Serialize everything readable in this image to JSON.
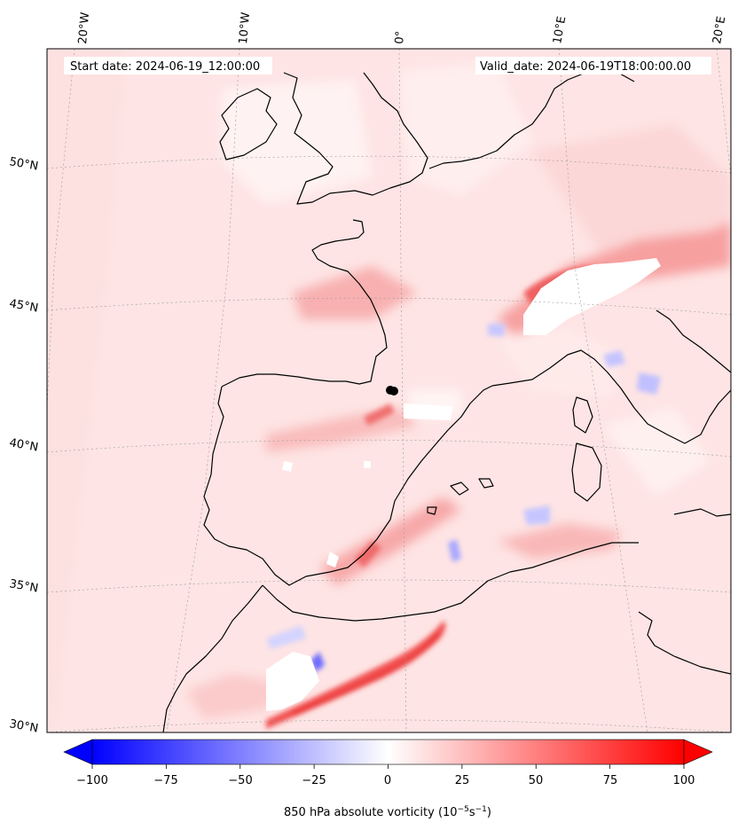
{
  "map": {
    "start_label": "Start date: 2024-06-19_12:00:00",
    "valid_label": "Valid_date: 2024-06-19T18:00:00.00",
    "lon_labels": [
      "20°W",
      "10°W",
      "0°",
      "10°E",
      "20°E"
    ],
    "lat_labels": [
      "50°N",
      "45°N",
      "40°N",
      "35°N",
      "30°N"
    ],
    "colorbar": {
      "ticks": [
        "−100",
        "−75",
        "−50",
        "−25",
        "0",
        "25",
        "50",
        "75",
        "100"
      ],
      "label": "850 hPa absolute vorticity (10",
      "label_exp1": "−5",
      "label_mid": "s",
      "label_exp2": "−1",
      "label_close": ")",
      "range": [
        -100,
        100
      ],
      "colormap": "bwr",
      "low_color": "#0000ff",
      "mid_color": "#ffffff",
      "high_color": "#ff0000"
    },
    "marker_color": "#000000"
  }
}
